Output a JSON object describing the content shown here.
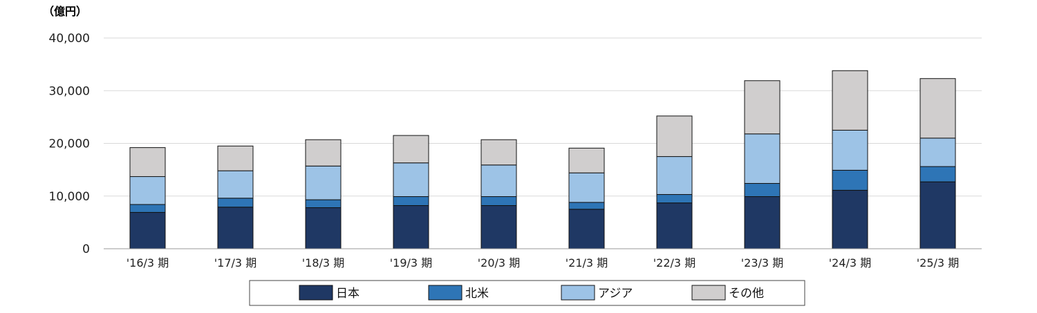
{
  "chart_data": {
    "type": "bar",
    "stacked": true,
    "unit_label": "（億円）",
    "categories": [
      "'16/3 期",
      "'17/3 期",
      "'18/3 期",
      "'19/3 期",
      "'20/3 期",
      "'21/3 期",
      "'22/3 期",
      "'23/3 期",
      "'24/3 期",
      "'25/3 期"
    ],
    "series": [
      {
        "name": "日本",
        "color": "#1f3864",
        "values": [
          6900,
          7900,
          7800,
          8200,
          8200,
          7500,
          8700,
          9900,
          11100,
          12700
        ]
      },
      {
        "name": "北米",
        "color": "#2e75b6",
        "values": [
          1500,
          1700,
          1500,
          1700,
          1700,
          1300,
          1600,
          2500,
          3800,
          2900
        ]
      },
      {
        "name": "アジア",
        "color": "#9dc3e6",
        "values": [
          5300,
          5200,
          6400,
          6400,
          6000,
          5600,
          7200,
          9400,
          7600,
          5400
        ]
      },
      {
        "name": "その他",
        "color": "#d0cece",
        "values": [
          5500,
          4700,
          5000,
          5200,
          4800,
          4700,
          7700,
          10100,
          11300,
          11300
        ]
      }
    ],
    "y_ticks": [
      "0",
      "10,000",
      "20,000",
      "30,000",
      "40,000"
    ],
    "ylim": [
      0,
      40000
    ],
    "grid": true,
    "legend_position": "bottom"
  }
}
